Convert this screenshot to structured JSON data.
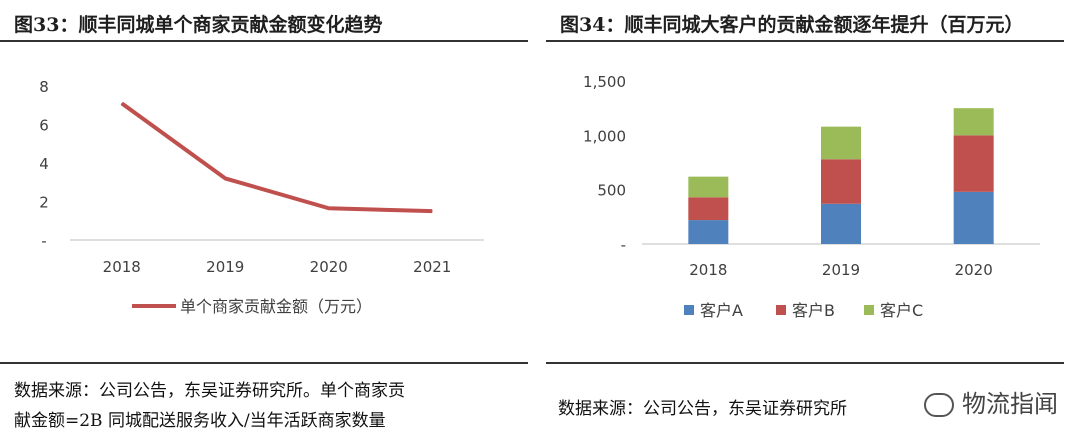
{
  "left": {
    "title": "图33：顺丰同城单个商家贡献金额变化趋势",
    "source_line1": "数据来源：公司公告，东吴证券研究所。单个商家贡",
    "source_line2": "献金额=2B 同城配送服务收入/当年活跃商家数量"
  },
  "right": {
    "title": "图34：顺丰同城大客户的贡献金额逐年提升（百万元）",
    "source": "数据来源：公司公告，东吴证券研究所"
  },
  "watermark": "物流指闻",
  "colors": {
    "line": "#c0504d",
    "a": "#4f81bd",
    "b": "#c0504d",
    "c": "#9bbb59",
    "axis": "#bfbfbf",
    "tick": "#404040"
  },
  "chart_data": [
    {
      "type": "line",
      "title": "",
      "x": [
        "2018",
        "2019",
        "2020",
        "2021"
      ],
      "series": [
        {
          "name": "单个商家贡献金额（万元）",
          "values": [
            7.1,
            3.2,
            1.65,
            1.5
          ]
        }
      ],
      "y_ticks": [
        "8",
        "6",
        "4",
        "2",
        "-"
      ],
      "ylim": [
        0,
        8
      ],
      "legend": "bottom",
      "grid": false
    },
    {
      "type": "bar",
      "stacked": true,
      "title": "",
      "categories": [
        "2018",
        "2019",
        "2020"
      ],
      "series": [
        {
          "name": "客户A",
          "values": [
            220,
            370,
            480
          ]
        },
        {
          "name": "客户B",
          "values": [
            210,
            410,
            520
          ]
        },
        {
          "name": "客户C",
          "values": [
            190,
            300,
            250
          ]
        }
      ],
      "y_ticks": [
        "1,500",
        "1,000",
        "500",
        "-"
      ],
      "ylim": [
        0,
        1500
      ],
      "legend": "bottom",
      "grid": false
    }
  ]
}
